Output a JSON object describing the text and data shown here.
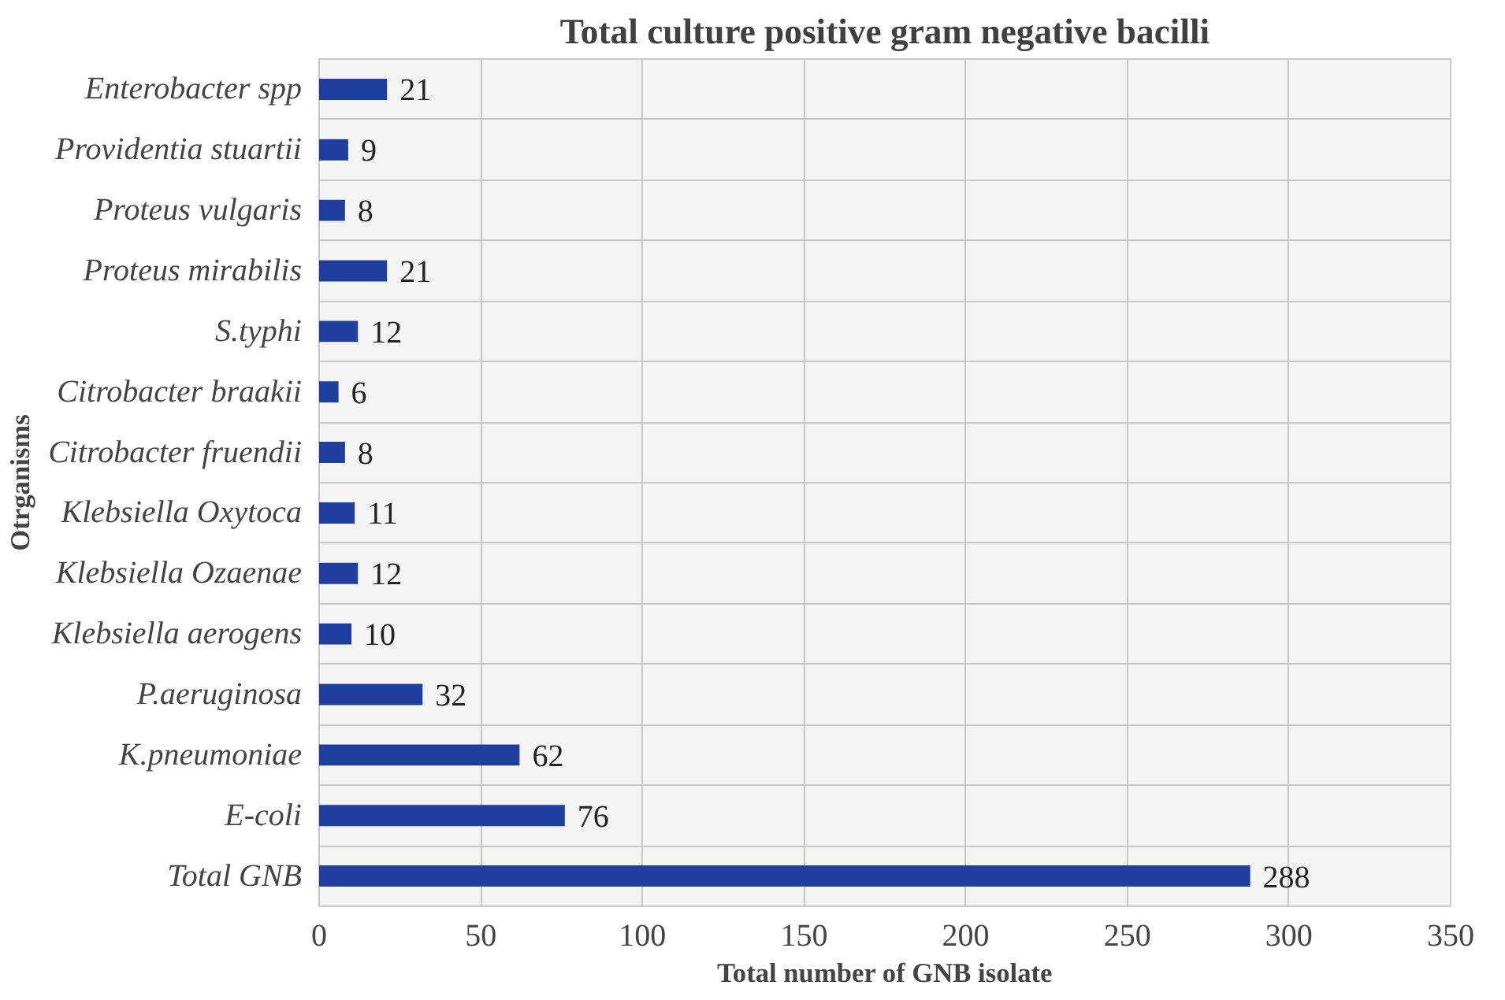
{
  "chart_data": {
    "type": "bar",
    "orientation": "horizontal",
    "title": "Total culture positive gram negative bacilli",
    "xlabel": "Total number of GNB isolate",
    "ylabel": "Otrganisms",
    "categories": [
      "Enterobacter spp",
      "Providentia stuartii",
      "Proteus vulgaris",
      "Proteus mirabilis",
      "S.typhi",
      "Citrobacter braakii",
      "Citrobacter fruendii",
      "Klebsiella Oxytoca",
      "Klebsiella Ozaenae",
      "Klebsiella aerogens",
      "P.aeruginosa",
      "K.pneumoniae",
      "E-coli",
      "Total GNB"
    ],
    "values": [
      21,
      9,
      8,
      21,
      12,
      6,
      8,
      11,
      12,
      10,
      32,
      62,
      76,
      288
    ],
    "color": "#1f3f9e",
    "xlim": [
      0,
      350
    ],
    "xticks": [
      0,
      50,
      100,
      150,
      200,
      250,
      300,
      350
    ],
    "grid": true,
    "data_labels": true
  }
}
